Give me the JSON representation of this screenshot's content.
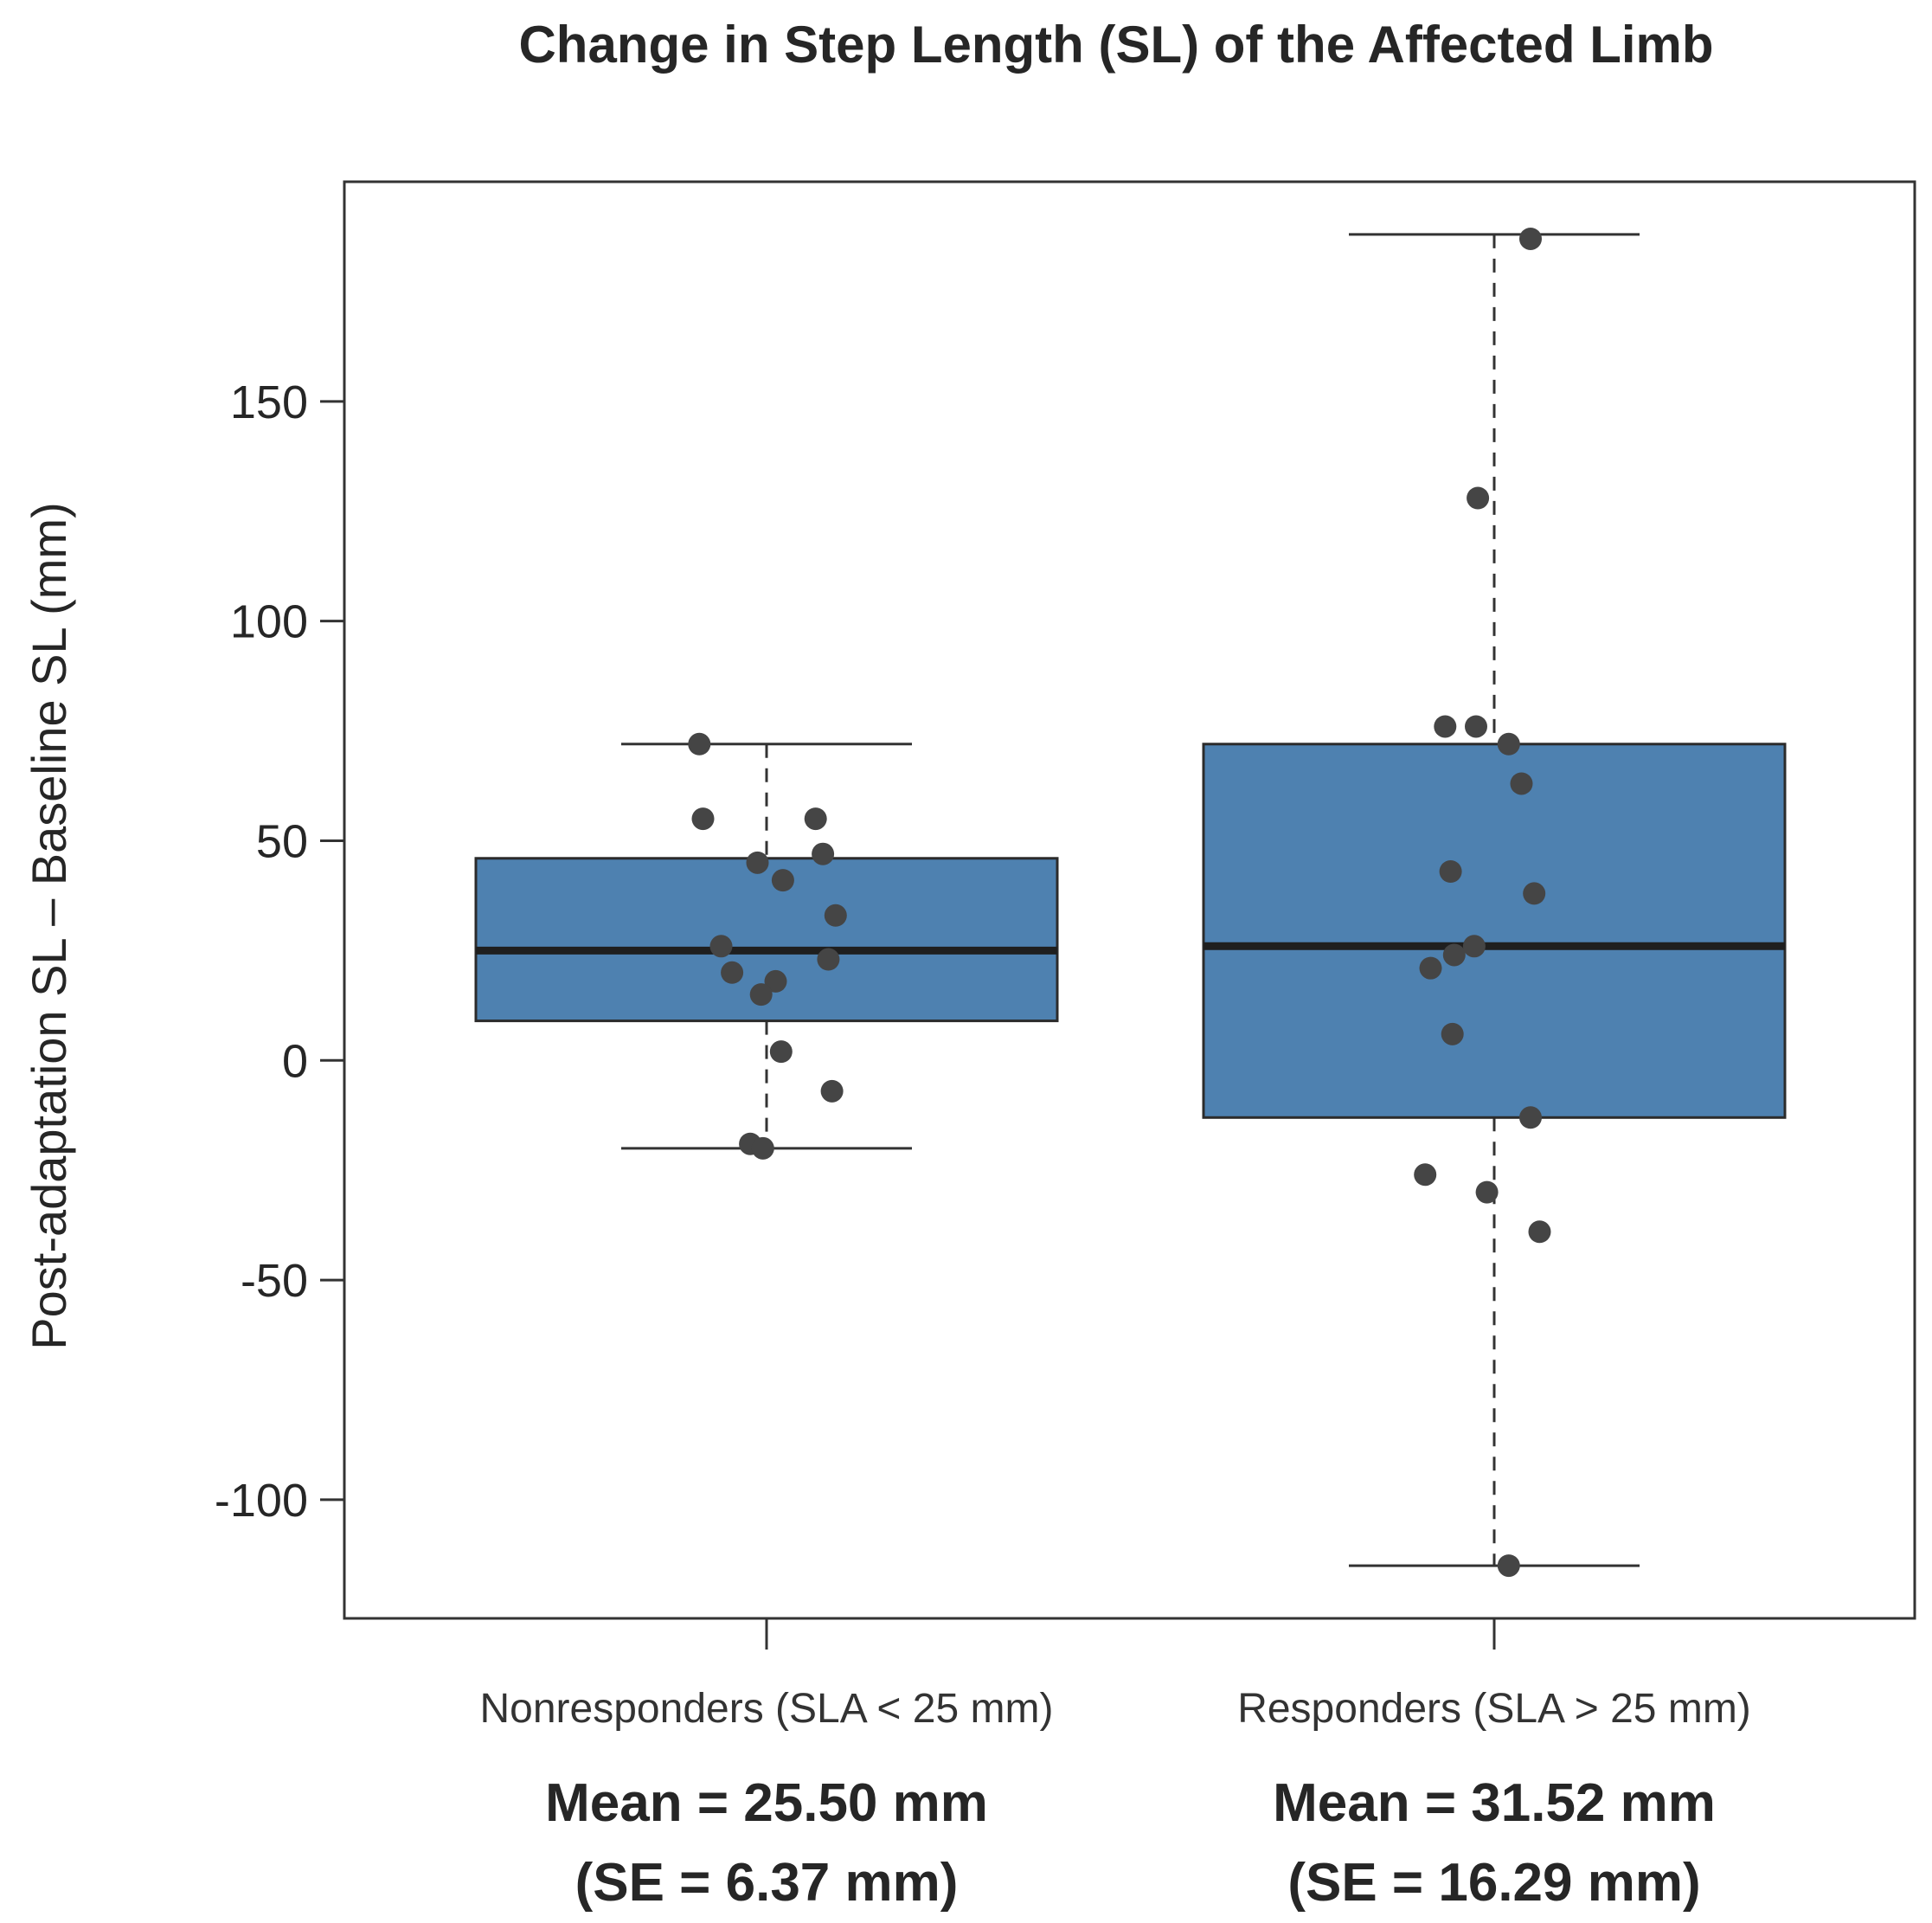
{
  "chart_data": {
    "type": "boxplot",
    "title": "Change in Step Length (SL) of the Affected Limb",
    "xlabel": "",
    "ylabel": "Post-adaptation SL – Baseline SL (mm)",
    "ylim": [
      -127,
      200
    ],
    "yticks": [
      -100,
      -50,
      0,
      50,
      100,
      150
    ],
    "ytick_labels": [
      "-100",
      "-50",
      "0",
      "50",
      "100",
      "150"
    ],
    "grid": false,
    "box_color": "#4e81b0",
    "point_color": "#454545",
    "series": [
      {
        "name": "Nonresponders (SLA < 25 mm)",
        "whisker_low": -20,
        "q1": 9,
        "median": 25,
        "q3": 46,
        "whisker_high": 72,
        "mean_label": "Mean = 25.50 mm",
        "se_label": "(SE = 6.37 mm)",
        "points": [
          {
            "jitter": -0.37,
            "y": 72
          },
          {
            "jitter": -0.35,
            "y": 55
          },
          {
            "jitter": 0.27,
            "y": 55
          },
          {
            "jitter": 0.31,
            "y": 47
          },
          {
            "jitter": -0.05,
            "y": 45
          },
          {
            "jitter": 0.09,
            "y": 41
          },
          {
            "jitter": 0.38,
            "y": 33
          },
          {
            "jitter": -0.25,
            "y": 26
          },
          {
            "jitter": 0.34,
            "y": 23
          },
          {
            "jitter": -0.19,
            "y": 20
          },
          {
            "jitter": 0.05,
            "y": 18
          },
          {
            "jitter": -0.03,
            "y": 15
          },
          {
            "jitter": 0.08,
            "y": 2
          },
          {
            "jitter": 0.36,
            "y": -7
          },
          {
            "jitter": -0.09,
            "y": -19
          },
          {
            "jitter": -0.02,
            "y": -20
          }
        ]
      },
      {
        "name": "Responders (SLA > 25 mm)",
        "whisker_low": -115,
        "q1": -13,
        "median": 26,
        "q3": 72,
        "whisker_high": 188,
        "mean_label": "Mean = 31.52 mm",
        "se_label": "(SE = 16.29 mm)",
        "points": [
          {
            "jitter": 0.2,
            "y": 187
          },
          {
            "jitter": -0.09,
            "y": 128
          },
          {
            "jitter": -0.27,
            "y": 76
          },
          {
            "jitter": -0.1,
            "y": 76
          },
          {
            "jitter": 0.08,
            "y": 72
          },
          {
            "jitter": 0.15,
            "y": 63
          },
          {
            "jitter": -0.24,
            "y": 43
          },
          {
            "jitter": 0.22,
            "y": 38
          },
          {
            "jitter": -0.11,
            "y": 26
          },
          {
            "jitter": -0.22,
            "y": 24
          },
          {
            "jitter": -0.35,
            "y": 21
          },
          {
            "jitter": -0.23,
            "y": 6
          },
          {
            "jitter": 0.2,
            "y": -13
          },
          {
            "jitter": -0.38,
            "y": -26
          },
          {
            "jitter": -0.04,
            "y": -30
          },
          {
            "jitter": 0.25,
            "y": -39
          },
          {
            "jitter": 0.08,
            "y": -115
          }
        ]
      }
    ]
  }
}
